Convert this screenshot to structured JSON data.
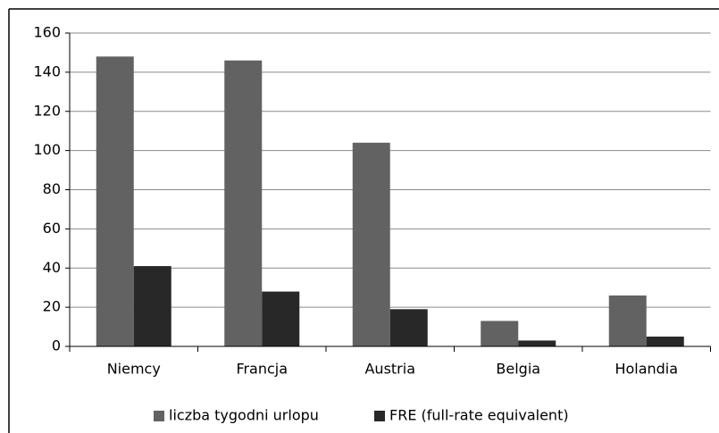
{
  "chart_data": {
    "type": "bar",
    "categories": [
      "Niemcy",
      "Francja",
      "Austria",
      "Belgia",
      "Holandia"
    ],
    "series": [
      {
        "name": "liczba tygodni urlopu",
        "color": "#626262",
        "values": [
          148,
          146,
          104,
          13,
          26
        ]
      },
      {
        "name": "FRE (full-rate equivalent)",
        "color": "#282828",
        "values": [
          41,
          28,
          19,
          3,
          5
        ]
      }
    ],
    "ylim": [
      0,
      160
    ],
    "yticks": [
      0,
      20,
      40,
      60,
      80,
      100,
      120,
      140,
      160
    ],
    "grid": true,
    "legend": "bottom"
  }
}
